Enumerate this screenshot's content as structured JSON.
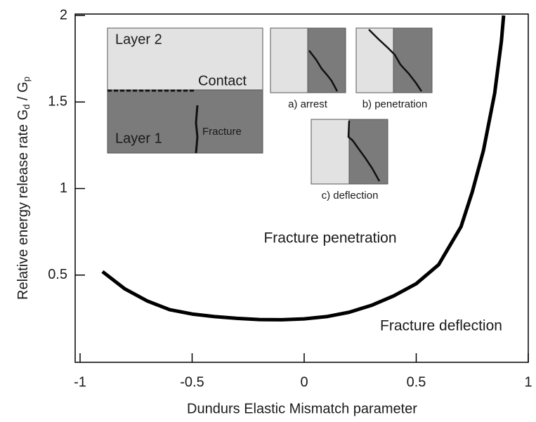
{
  "chart_data": {
    "type": "line",
    "x_label": "Dundurs Elastic Mismatch parameter",
    "y_label_parts": [
      "Relative energy release rate G",
      "d",
      " / G",
      "p"
    ],
    "x": [
      -0.9,
      -0.8,
      -0.7,
      -0.6,
      -0.5,
      -0.4,
      -0.3,
      -0.2,
      -0.1,
      0,
      0.1,
      0.2,
      0.3,
      0.4,
      0.5,
      0.6,
      0.7,
      0.75,
      0.8,
      0.85,
      0.88,
      0.89
    ],
    "series": [
      {
        "color": "#000000",
        "values": [
          0.52,
          0.42,
          0.35,
          0.3,
          0.275,
          0.26,
          0.25,
          0.243,
          0.242,
          0.247,
          0.26,
          0.285,
          0.325,
          0.38,
          0.45,
          0.56,
          0.78,
          0.98,
          1.22,
          1.55,
          1.85,
          2.0
        ]
      }
    ],
    "xlim": [
      -1,
      1
    ],
    "ylim": [
      0,
      2
    ],
    "xticks": [
      -1,
      -0.5,
      0,
      0.5,
      1
    ],
    "yticks": [
      0.5,
      1,
      1.5,
      2
    ],
    "annotations": [
      "Fracture penetration",
      "Fracture deflection"
    ],
    "inset": {
      "layer2": "Layer 2",
      "contact": "Contact",
      "layer1": "Layer 1",
      "fracture": "Fracture",
      "a": "a) arrest",
      "b": "b) penetration",
      "c": "c) deflection"
    }
  }
}
